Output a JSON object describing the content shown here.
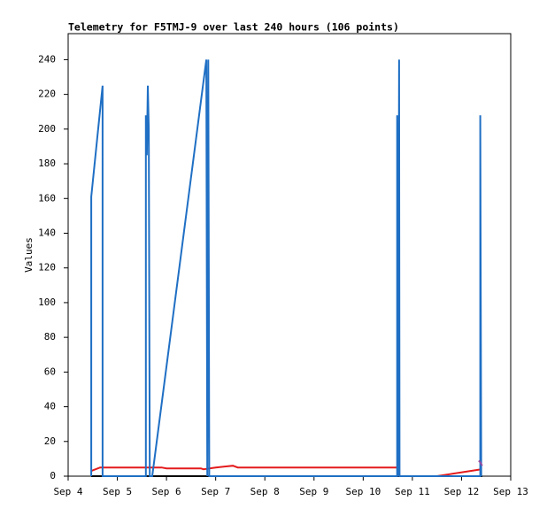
{
  "chart_data": {
    "type": "line",
    "title": "Telemetry for F5TMJ-9 over last 240 hours (106 points)",
    "ylabel": "Values",
    "xlim": [
      4,
      13
    ],
    "xticks": [
      {
        "value": 4,
        "label": "Sep 4"
      },
      {
        "value": 5,
        "label": "Sep 5"
      },
      {
        "value": 6,
        "label": "Sep 6"
      },
      {
        "value": 7,
        "label": "Sep 7"
      },
      {
        "value": 8,
        "label": "Sep 8"
      },
      {
        "value": 9,
        "label": "Sep 9"
      },
      {
        "value": 10,
        "label": "Sep 10"
      },
      {
        "value": 11,
        "label": "Sep 11"
      },
      {
        "value": 12,
        "label": "Sep 12"
      },
      {
        "value": 13,
        "label": "Sep 13"
      }
    ],
    "ylim": [
      0,
      255
    ],
    "yticks": [
      0,
      20,
      40,
      60,
      80,
      100,
      120,
      140,
      160,
      180,
      200,
      220,
      240
    ],
    "series": [
      {
        "color": "#000000",
        "x": [
          4.47,
          12.42
        ],
        "values": [
          0,
          0
        ]
      },
      {
        "color": "#e41a1c",
        "x": [
          4.47,
          4.65,
          5.9,
          6.0,
          6.7,
          6.75,
          7.0,
          7.35,
          7.45,
          10.72,
          10.74,
          11.5,
          12.4
        ],
        "values": [
          3,
          5,
          5,
          4.5,
          4.5,
          4,
          5,
          6,
          5,
          5,
          0,
          0,
          4
        ]
      },
      {
        "color": "#1f6fc4",
        "x": [
          4.47,
          4.47,
          4.7,
          4.7,
          5.58,
          5.58,
          5.6,
          5.62,
          5.64,
          5.66,
          5.71,
          6.81,
          6.83,
          6.85,
          6.86,
          6.87,
          10.69,
          10.69,
          10.71,
          10.73,
          10.74,
          12.38,
          12.38,
          12.4
        ],
        "values": [
          0,
          161,
          225,
          0,
          0,
          208,
          185,
          225,
          200,
          0,
          0,
          240,
          0,
          240,
          120,
          0,
          0,
          208,
          0,
          240,
          0,
          0,
          208,
          0
        ]
      },
      {
        "color": "#984ea3",
        "x": [
          12.35,
          12.38,
          12.42
        ],
        "values": [
          9,
          8,
          6
        ]
      }
    ]
  }
}
